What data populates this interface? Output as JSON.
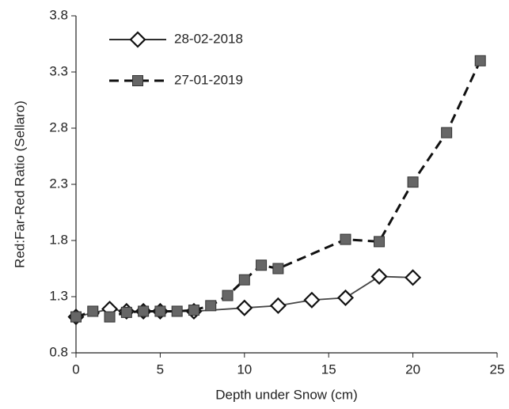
{
  "chart_data": {
    "type": "line",
    "x_label": "Depth under Snow (cm)",
    "y_label": "Red:Far-Red Ratio (Sellaro)",
    "xlim": [
      0,
      25
    ],
    "xticks": [
      0,
      5,
      10,
      15,
      20,
      25
    ],
    "ylim": [
      0.8,
      3.8
    ],
    "yticks": [
      0.8,
      1.3,
      1.8,
      2.3,
      2.8,
      3.3,
      3.8
    ],
    "legend": "top-left",
    "series": [
      {
        "name": "28-02-2018",
        "color": "#222222",
        "marker": "diamond",
        "dash": "solid",
        "x": [
          0,
          2,
          3,
          4,
          5,
          7,
          10,
          12,
          14,
          16,
          18,
          20
        ],
        "values": [
          1.12,
          1.19,
          1.17,
          1.17,
          1.17,
          1.17,
          1.2,
          1.22,
          1.27,
          1.29,
          1.48,
          1.47
        ]
      },
      {
        "name": "27-01-2019",
        "color": "#666666",
        "marker": "square",
        "dash": "dashed",
        "x": [
          0,
          1,
          2,
          3,
          4,
          5,
          6,
          7,
          8,
          9,
          10,
          11,
          12,
          16,
          18,
          20,
          22,
          24
        ],
        "values": [
          1.12,
          1.17,
          1.12,
          1.16,
          1.17,
          1.17,
          1.17,
          1.18,
          1.22,
          1.31,
          1.45,
          1.58,
          1.55,
          1.81,
          1.79,
          2.32,
          2.76,
          3.4
        ]
      }
    ]
  }
}
